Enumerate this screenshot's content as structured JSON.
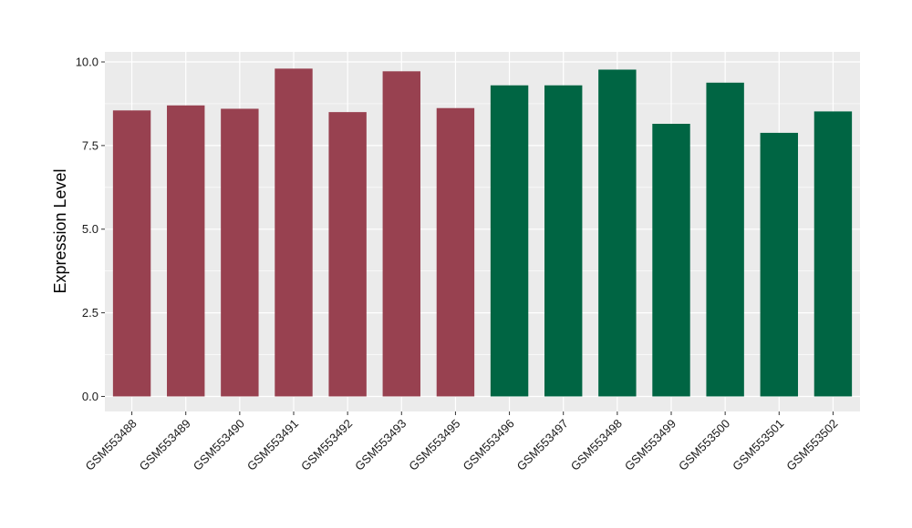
{
  "chart_data": {
    "type": "bar",
    "title": "",
    "xlabel": "",
    "ylabel": "Expression Level",
    "ylim": [
      -0.45,
      10.3
    ],
    "yticks": [
      0.0,
      2.5,
      5.0,
      7.5,
      10.0
    ],
    "ytick_labels": [
      "0.0",
      "2.5",
      "5.0",
      "7.5",
      "10.0"
    ],
    "grid": true,
    "legend": "none",
    "categories": [
      "GSM553488",
      "GSM553489",
      "GSM553490",
      "GSM553491",
      "GSM553492",
      "GSM553493",
      "GSM553495",
      "GSM553496",
      "GSM553497",
      "GSM553498",
      "GSM553499",
      "GSM553500",
      "GSM553501",
      "GSM553502"
    ],
    "values": [
      8.55,
      8.7,
      8.6,
      9.8,
      8.5,
      9.72,
      8.62,
      9.3,
      9.3,
      9.77,
      8.15,
      9.38,
      7.88,
      8.52
    ],
    "groups": [
      0,
      0,
      0,
      0,
      0,
      0,
      0,
      1,
      1,
      1,
      1,
      1,
      1,
      1
    ],
    "group_colors": [
      "#984150",
      "#006543"
    ],
    "panel_background": "#ebebeb",
    "grid_color": "#ffffff"
  }
}
